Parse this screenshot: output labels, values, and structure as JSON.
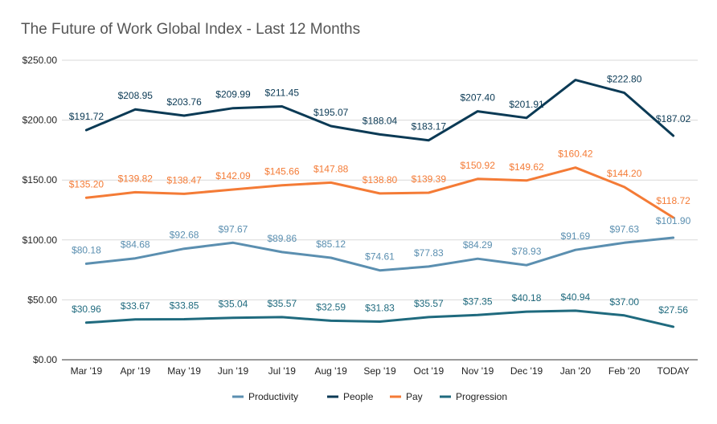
{
  "chart_data": {
    "type": "line",
    "title": "The Future of Work Global Index - Last 12 Months",
    "xlabel": "",
    "ylabel": "",
    "ylim": [
      0,
      250
    ],
    "grid": true,
    "legend_position": "bottom",
    "yticks": [
      "$0.00",
      "$50.00",
      "$100.00",
      "$150.00",
      "$200.00",
      "$250.00"
    ],
    "categories": [
      "Mar '19",
      "Apr '19",
      "May '19",
      "Jun '19",
      "Jul '19",
      "Aug '19",
      "Sep '19",
      "Oct '19",
      "Nov '19",
      "Dec '19",
      "Jan '20",
      "Feb '20",
      "TODAY"
    ],
    "series": [
      {
        "name": "Productivity",
        "color": "#5b8fb0",
        "values": [
          80.18,
          84.68,
          92.68,
          97.67,
          89.86,
          85.12,
          74.61,
          77.83,
          84.29,
          78.93,
          91.69,
          97.63,
          101.9
        ],
        "labels": [
          "$80.18",
          "$84.68",
          "$92.68",
          "$97.67",
          "$89.86",
          "$85.12",
          "$74.61",
          "$77.83",
          "$84.29",
          "$78.93",
          "$91.69",
          "$97.63",
          "$101.90"
        ]
      },
      {
        "name": "People",
        "color": "#0b3a55",
        "values": [
          191.72,
          208.95,
          203.76,
          209.99,
          211.45,
          195.07,
          188.04,
          183.17,
          207.4,
          201.91,
          233.5,
          222.8,
          187.02
        ],
        "labels": [
          "$191.72",
          "$208.95",
          "$203.76",
          "$209.99",
          "$211.45",
          "$195.07",
          "$188.04",
          "$183.17",
          "$207.40",
          "$201.91",
          "",
          "$222.80",
          "$187.02"
        ]
      },
      {
        "name": "Pay",
        "color": "#f47b36",
        "values": [
          135.2,
          139.82,
          138.47,
          142.09,
          145.66,
          147.88,
          138.8,
          139.39,
          150.92,
          149.62,
          160.42,
          144.2,
          118.72
        ],
        "labels": [
          "$135.20",
          "$139.82",
          "$138.47",
          "$142.09",
          "$145.66",
          "$147.88",
          "$138.80",
          "$139.39",
          "$150.92",
          "$149.62",
          "$160.42",
          "$144.20",
          "$118.72"
        ]
      },
      {
        "name": "Progression",
        "color": "#1f6a7e",
        "values": [
          30.96,
          33.67,
          33.85,
          35.04,
          35.57,
          32.59,
          31.83,
          35.57,
          37.35,
          40.18,
          40.94,
          37.0,
          27.56
        ],
        "labels": [
          "$30.96",
          "$33.67",
          "$33.85",
          "$35.04",
          "$35.57",
          "$32.59",
          "$31.83",
          "$35.57",
          "$37.35",
          "$40.18",
          "$40.94",
          "$37.00",
          "$27.56"
        ]
      }
    ]
  }
}
